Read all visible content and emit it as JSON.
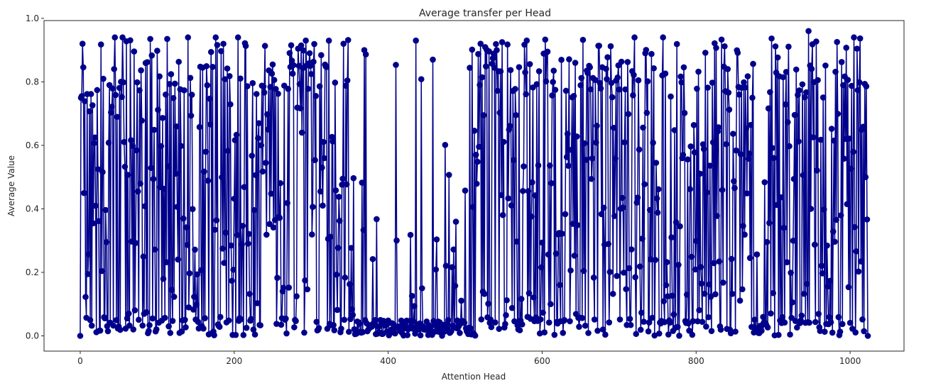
{
  "chart_data": {
    "type": "line",
    "title": "Average transfer per Head",
    "xlabel": "Attention Head",
    "ylabel": "Average Value",
    "xlim": [
      -47,
      1070
    ],
    "ylim": [
      -0.048,
      0.993
    ],
    "xticks": [
      0,
      200,
      400,
      600,
      800,
      1000
    ],
    "xtick_labels": [
      "0",
      "200",
      "400",
      "600",
      "800",
      "1000"
    ],
    "yticks": [
      0.0,
      0.2,
      0.4,
      0.6,
      0.8,
      1.0
    ],
    "ytick_labels": [
      "0.0",
      "0.2",
      "0.4",
      "0.6",
      "0.8",
      "1.0"
    ],
    "grid": false,
    "series": [
      {
        "color": "#00008b",
        "marker": "circle",
        "x_start": 0,
        "x_step": 1,
        "segments": [
          {
            "start": 0,
            "end": 355,
            "pattern": "wide"
          },
          {
            "start": 356,
            "end": 505,
            "pattern": "low"
          },
          {
            "start": 506,
            "end": 1023,
            "pattern": "wide"
          }
        ],
        "highlights": [
          {
            "x": 0,
            "y": 0.0
          },
          {
            "x": 1,
            "y": 0.75
          },
          {
            "x": 3,
            "y": 0.92
          },
          {
            "x": 45,
            "y": 0.94
          },
          {
            "x": 55,
            "y": 0.94
          },
          {
            "x": 140,
            "y": 0.94
          },
          {
            "x": 176,
            "y": 0.94
          },
          {
            "x": 205,
            "y": 0.94
          },
          {
            "x": 293,
            "y": 0.93
          },
          {
            "x": 342,
            "y": 0.92
          },
          {
            "x": 369,
            "y": 0.9
          },
          {
            "x": 436,
            "y": 0.93
          },
          {
            "x": 458,
            "y": 0.87
          },
          {
            "x": 520,
            "y": 0.92
          },
          {
            "x": 580,
            "y": 0.93
          },
          {
            "x": 720,
            "y": 0.94
          },
          {
            "x": 757,
            "y": 0.94
          },
          {
            "x": 946,
            "y": 0.96
          },
          {
            "x": 1005,
            "y": 0.94
          },
          {
            "x": 1020,
            "y": 0.5
          },
          {
            "x": 1023,
            "y": 0.0
          }
        ]
      }
    ]
  }
}
